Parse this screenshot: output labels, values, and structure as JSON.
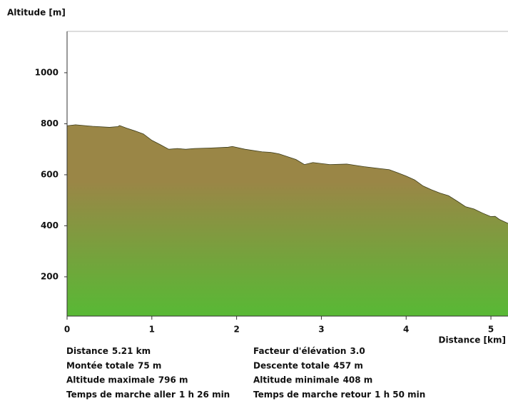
{
  "chart_data": {
    "type": "area",
    "y_label": "Altitude [m]",
    "x_label": "Distance [km]",
    "color_top": "#9a8646",
    "color_bottom": "#58b935",
    "line_color": "#3a3a1a",
    "xlim": [
      0,
      5.21
    ],
    "ylim": [
      46,
      1162
    ],
    "xticks": [
      0,
      1,
      2,
      3,
      4,
      5
    ],
    "yticks": [
      200,
      400,
      600,
      800,
      1000
    ],
    "x": [
      0,
      0.1,
      0.3,
      0.5,
      0.6,
      0.62,
      0.7,
      0.8,
      0.9,
      1.0,
      1.1,
      1.2,
      1.3,
      1.4,
      1.5,
      1.7,
      1.9,
      1.95,
      2.1,
      2.3,
      2.4,
      2.5,
      2.7,
      2.8,
      2.9,
      3.1,
      3.3,
      3.5,
      3.7,
      3.8,
      3.9,
      4.0,
      4.1,
      4.2,
      4.3,
      4.4,
      4.5,
      4.6,
      4.7,
      4.8,
      4.9,
      5.0,
      5.05,
      5.1,
      5.21
    ],
    "values": [
      792,
      796,
      790,
      786,
      789,
      793,
      783,
      772,
      760,
      735,
      718,
      700,
      703,
      700,
      703,
      705,
      708,
      711,
      700,
      690,
      688,
      682,
      660,
      640,
      648,
      640,
      642,
      632,
      624,
      620,
      608,
      595,
      580,
      556,
      541,
      528,
      518,
      497,
      475,
      466,
      450,
      436,
      437,
      425,
      408
    ]
  },
  "stats": [
    {
      "label": "Distance",
      "value": "5.21 km"
    },
    {
      "label": "Facteur d'élévation",
      "value": "3.0"
    },
    {
      "label": "Montée totale",
      "value": "75 m"
    },
    {
      "label": "Descente totale",
      "value": "457 m"
    },
    {
      "label": "Altitude maximale",
      "value": "796 m"
    },
    {
      "label": "Altitude minimale",
      "value": "408 m"
    },
    {
      "label": "Temps de marche aller",
      "value": "1 h 26 min"
    },
    {
      "label": "Temps de marche retour",
      "value": "1 h 50 min"
    }
  ]
}
